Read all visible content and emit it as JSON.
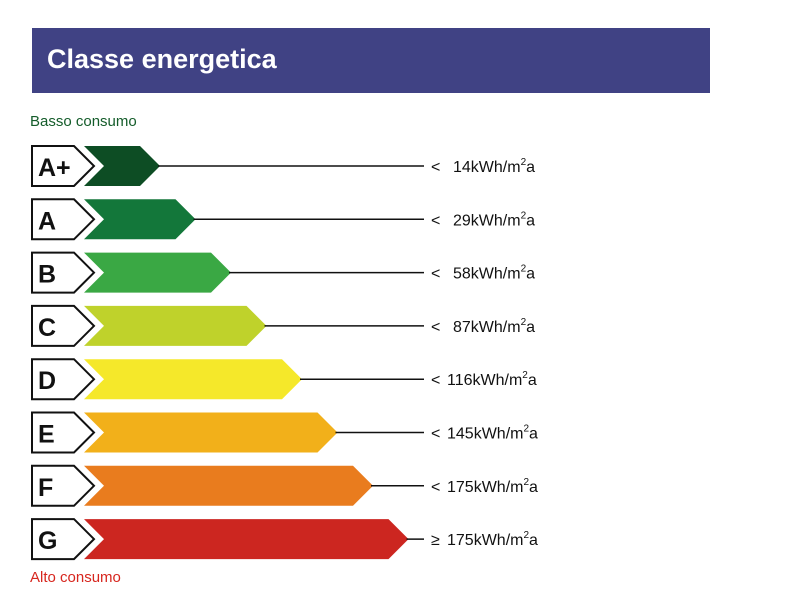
{
  "header": {
    "title": "Classe energetica"
  },
  "legend": {
    "low": "Basso consumo",
    "high": "Alto consumo"
  },
  "chart_data": {
    "type": "bar",
    "title": "Classe energetica",
    "categories": [
      "A+",
      "A",
      "B",
      "C",
      "D",
      "E",
      "F",
      "G"
    ],
    "threshold_labels": [
      {
        "symbol": "<",
        "value": "14",
        "unit": "kWh/m",
        "sup": "2",
        "suffix": "a"
      },
      {
        "symbol": "<",
        "value": "29",
        "unit": "kWh/m",
        "sup": "2",
        "suffix": "a"
      },
      {
        "symbol": "<",
        "value": "58",
        "unit": "kWh/m",
        "sup": "2",
        "suffix": "a"
      },
      {
        "symbol": "<",
        "value": "87",
        "unit": "kWh/m",
        "sup": "2",
        "suffix": "a"
      },
      {
        "symbol": "<",
        "value": "116",
        "unit": "kWh/m",
        "sup": "2",
        "suffix": "a"
      },
      {
        "symbol": "<",
        "value": "145",
        "unit": "kWh/m",
        "sup": "2",
        "suffix": "a"
      },
      {
        "symbol": "<",
        "value": "175",
        "unit": "kWh/m",
        "sup": "2",
        "suffix": "a"
      },
      {
        "symbol": "≥",
        "value": "175",
        "unit": "kWh/m",
        "sup": "2",
        "suffix": "a"
      }
    ],
    "values": [
      14,
      29,
      58,
      87,
      116,
      145,
      175,
      175
    ],
    "colors": [
      "#0d4d24",
      "#13773a",
      "#3aa844",
      "#bfd22b",
      "#f5e82a",
      "#f2b01a",
      "#e97c1e",
      "#cc2620"
    ],
    "header_color": "#404284"
  }
}
